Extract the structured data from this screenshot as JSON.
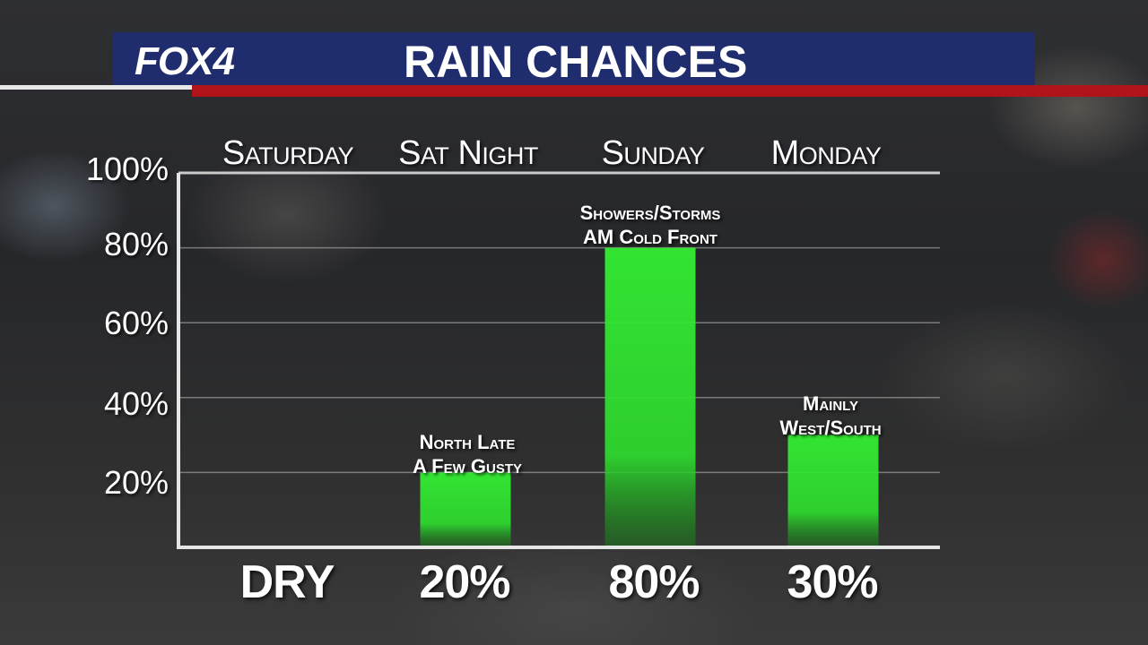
{
  "header": {
    "logo": "FOX4",
    "title": "RAIN CHANCES"
  },
  "colors": {
    "header_bar": "#1f2d6e",
    "accent_red": "#b1131b",
    "bar_green": "#33ee33"
  },
  "chart_data": {
    "type": "bar",
    "title": "RAIN CHANCES",
    "categories": [
      "Saturday",
      "Sat Night",
      "Sunday",
      "Monday"
    ],
    "values": [
      0,
      20,
      80,
      30
    ],
    "value_labels": [
      "DRY",
      "20%",
      "80%",
      "30%"
    ],
    "annotations": [
      [],
      [
        "North Late",
        "A Few Gusty"
      ],
      [
        "Showers/Storms",
        "AM Cold Front"
      ],
      [
        "Mainly",
        "West/South"
      ]
    ],
    "yticks": [
      "100%",
      "80%",
      "60%",
      "40%",
      "20%"
    ],
    "ylim": [
      0,
      100
    ],
    "grid": true,
    "xlabel": "",
    "ylabel": ""
  }
}
